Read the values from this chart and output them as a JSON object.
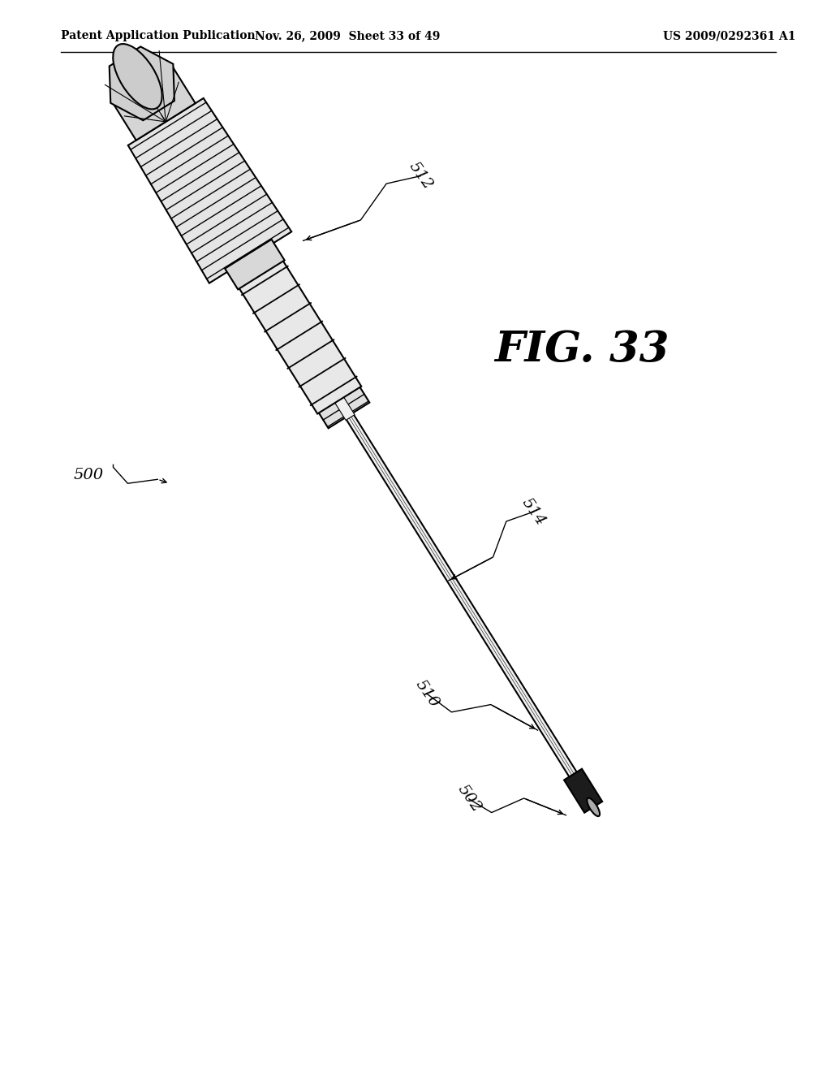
{
  "bg_color": "#ffffff",
  "header_left": "Patent Application Publication",
  "header_center": "Nov. 26, 2009  Sheet 33 of 49",
  "header_right": "US 2009/0292361 A1",
  "fig_label": "FIG. 33"
}
